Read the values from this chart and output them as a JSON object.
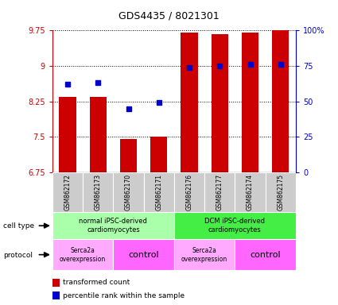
{
  "title": "GDS4435 / 8021301",
  "samples": [
    "GSM862172",
    "GSM862173",
    "GSM862170",
    "GSM862171",
    "GSM862176",
    "GSM862177",
    "GSM862174",
    "GSM862175"
  ],
  "bar_values": [
    8.35,
    8.35,
    7.45,
    7.5,
    9.7,
    9.68,
    9.7,
    9.75
  ],
  "percentile_values": [
    62,
    63,
    45,
    49,
    74,
    75,
    76,
    76
  ],
  "ylim_left": [
    6.75,
    9.75
  ],
  "yticks_left": [
    6.75,
    7.5,
    8.25,
    9.0,
    9.75
  ],
  "ytick_labels_left": [
    "6.75",
    "7.5",
    "8.25",
    "9",
    "9.75"
  ],
  "ylim_right": [
    0,
    100
  ],
  "yticks_right": [
    0,
    25,
    50,
    75,
    100
  ],
  "ytick_labels_right": [
    "0",
    "25",
    "50",
    "75",
    "100%"
  ],
  "bar_color": "#cc0000",
  "dot_color": "#0000cc",
  "bar_width": 0.55,
  "left_yaxis_color": "#cc0000",
  "right_yaxis_color": "#0000cc",
  "cell_type_groups": [
    {
      "label": "normal iPSC-derived\ncardiomyocytes",
      "start": 0,
      "end": 4,
      "color": "#aaffaa"
    },
    {
      "label": "DCM iPSC-derived\ncardiomyocytes",
      "start": 4,
      "end": 8,
      "color": "#44ee44"
    }
  ],
  "protocol_groups": [
    {
      "label": "Serca2a\noverexpression",
      "start": 0,
      "end": 2,
      "color": "#ffaaff",
      "fontsize": 5.5
    },
    {
      "label": "control",
      "start": 2,
      "end": 4,
      "color": "#ff66ff",
      "fontsize": 8
    },
    {
      "label": "Serca2a\noverexpression",
      "start": 4,
      "end": 6,
      "color": "#ffaaff",
      "fontsize": 5.5
    },
    {
      "label": "control",
      "start": 6,
      "end": 8,
      "color": "#ff66ff",
      "fontsize": 8
    }
  ],
  "legend_items": [
    {
      "color": "#cc0000",
      "label": "transformed count"
    },
    {
      "color": "#0000cc",
      "label": "percentile rank within the sample"
    }
  ],
  "sample_box_color": "#cccccc",
  "grid_color": "#000000",
  "title_fontsize": 9
}
